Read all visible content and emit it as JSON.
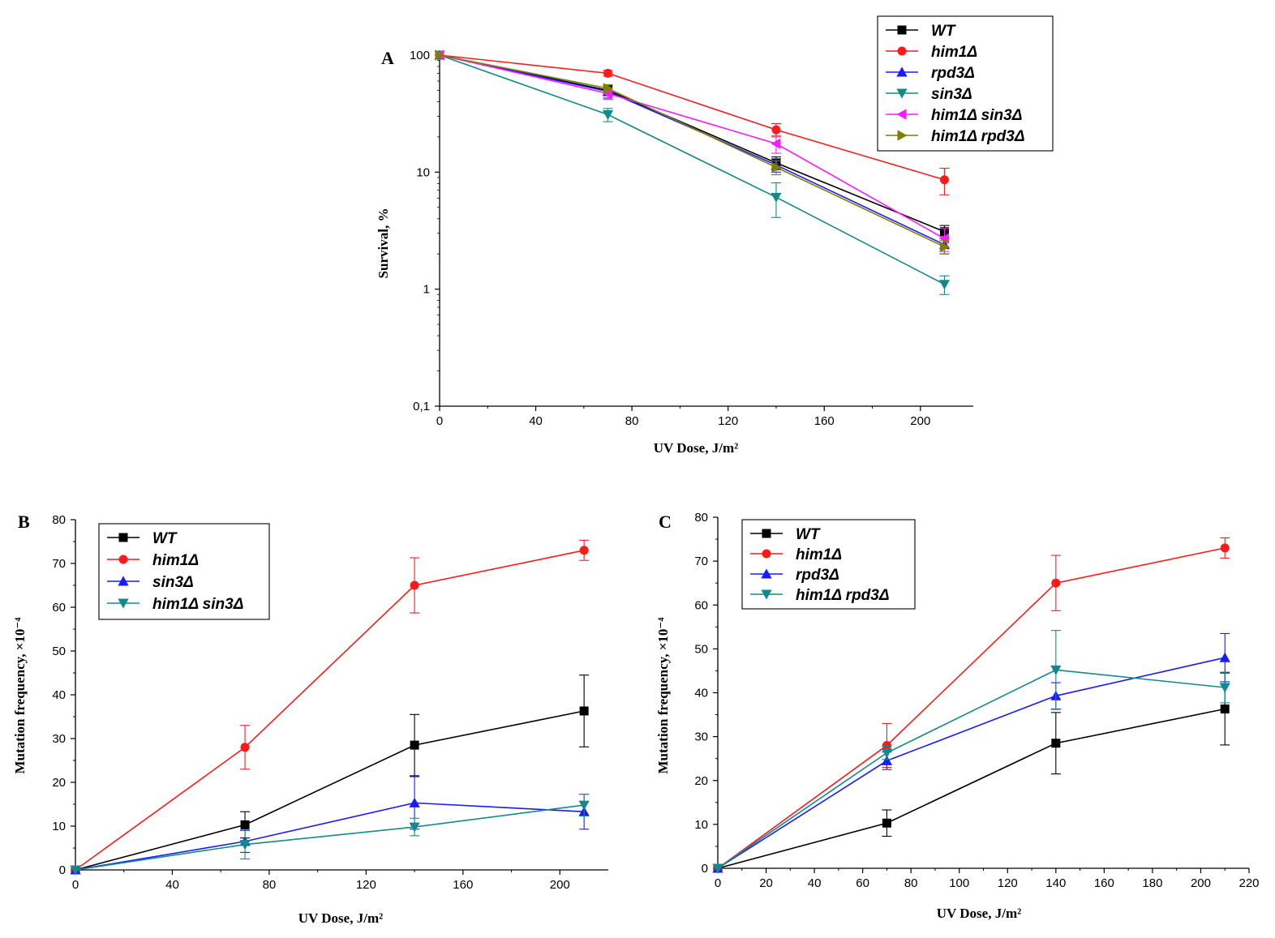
{
  "chart_data": [
    {
      "panel": "A",
      "type": "line",
      "xlabel": "UV Dose, J/m²",
      "ylabel": "Survival, %",
      "xlim": [
        0,
        222
      ],
      "ylim": [
        0.1,
        100
      ],
      "yscale": "log",
      "xticks": [
        "0",
        "40",
        "80",
        "120",
        "160",
        "200"
      ],
      "yticks": [
        "0,1",
        "1",
        "10",
        "100"
      ],
      "grid": false,
      "legend_position": "top-right",
      "x": [
        0,
        70,
        140,
        210
      ],
      "series": [
        {
          "name": "WT",
          "color": "#000000",
          "marker": "square",
          "values": [
            100,
            50,
            12,
            3.1
          ],
          "errors": [
            0,
            5,
            1.5,
            0.4
          ]
        },
        {
          "name": "him1Δ",
          "color": "#ff1a1a",
          "marker": "circle",
          "values": [
            100,
            70,
            23,
            8.6
          ],
          "errors": [
            0,
            4,
            3,
            2.2
          ]
        },
        {
          "name": "rpd3Δ",
          "color": "#1a1aff",
          "marker": "triangle-up",
          "values": [
            100,
            49,
            11.5,
            2.4
          ],
          "errors": [
            0,
            6,
            1.5,
            0.4
          ]
        },
        {
          "name": "sin3Δ",
          "color": "#138a8a",
          "marker": "triangle-down",
          "values": [
            100,
            31,
            6.1,
            1.1
          ],
          "errors": [
            0,
            4,
            2,
            0.2
          ]
        },
        {
          "name": "him1Δ sin3Δ",
          "color": "#ff1aff",
          "marker": "triangle-left",
          "values": [
            100,
            47,
            17.5,
            2.7
          ],
          "errors": [
            0,
            5,
            3,
            0.6
          ]
        },
        {
          "name": "him1Δ rpd3Δ",
          "color": "#7f7f00",
          "marker": "triangle-right",
          "values": [
            100,
            52,
            11,
            2.3
          ],
          "errors": [
            0,
            4,
            1.5,
            0.3
          ]
        }
      ]
    },
    {
      "panel": "B",
      "type": "line",
      "xlabel": "UV Dose, J/m²",
      "ylabel": "Mutation frequency, ×10⁻⁴",
      "xlim": [
        0,
        220
      ],
      "ylim": [
        0,
        80
      ],
      "xticks": [
        "0",
        "40",
        "80",
        "120",
        "160",
        "200"
      ],
      "yticks": [
        "0",
        "10",
        "20",
        "30",
        "40",
        "50",
        "60",
        "70",
        "80"
      ],
      "grid": false,
      "legend_position": "top-left",
      "x": [
        0,
        70,
        140,
        210
      ],
      "series": [
        {
          "name": "WT",
          "color": "#000000",
          "marker": "square",
          "values": [
            0,
            10.3,
            28.5,
            36.3
          ],
          "errors": [
            0,
            3,
            7,
            8.2
          ]
        },
        {
          "name": "him1Δ",
          "color": "#ff1a1a",
          "marker": "circle",
          "values": [
            0,
            28,
            65,
            73
          ],
          "errors": [
            0,
            5,
            6.3,
            2.3
          ]
        },
        {
          "name": "sin3Δ",
          "color": "#1a1aff",
          "marker": "triangle-up",
          "values": [
            0,
            6.5,
            15.3,
            13.3
          ],
          "errors": [
            0,
            2.5,
            6,
            4
          ]
        },
        {
          "name": "him1Δ sin3Δ",
          "color": "#138a8a",
          "marker": "triangle-down",
          "values": [
            0,
            5.8,
            9.8,
            14.8
          ],
          "errors": [
            0,
            3.3,
            2,
            2.5
          ]
        }
      ]
    },
    {
      "panel": "C",
      "type": "line",
      "xlabel": "UV Dose, J/m²",
      "ylabel": "Mutation frequency, ×10⁻⁴",
      "xlim": [
        0,
        220
      ],
      "ylim": [
        0,
        80
      ],
      "xticks": [
        "0",
        "20",
        "40",
        "60",
        "80",
        "100",
        "120",
        "140",
        "160",
        "180",
        "200",
        "220"
      ],
      "yticks": [
        "0",
        "10",
        "20",
        "30",
        "40",
        "50",
        "60",
        "70",
        "80"
      ],
      "grid": false,
      "legend_position": "top-left",
      "x": [
        0,
        70,
        140,
        210
      ],
      "series": [
        {
          "name": "WT",
          "color": "#000000",
          "marker": "square",
          "values": [
            0,
            10.3,
            28.5,
            36.3
          ],
          "errors": [
            0,
            3,
            7,
            8.2
          ]
        },
        {
          "name": "him1Δ",
          "color": "#ff1a1a",
          "marker": "circle",
          "values": [
            0,
            28,
            65,
            73
          ],
          "errors": [
            0,
            5,
            6.3,
            2.3
          ]
        },
        {
          "name": "rpd3Δ",
          "color": "#1a1aff",
          "marker": "triangle-up",
          "values": [
            0,
            24.5,
            39.3,
            48
          ],
          "errors": [
            0,
            2,
            3,
            5.5
          ]
        },
        {
          "name": "him1Δ rpd3Δ",
          "color": "#138a8a",
          "marker": "triangle-down",
          "values": [
            0,
            26.3,
            45.2,
            41.2
          ],
          "errors": [
            0,
            1.5,
            9,
            3.5
          ]
        }
      ]
    }
  ]
}
